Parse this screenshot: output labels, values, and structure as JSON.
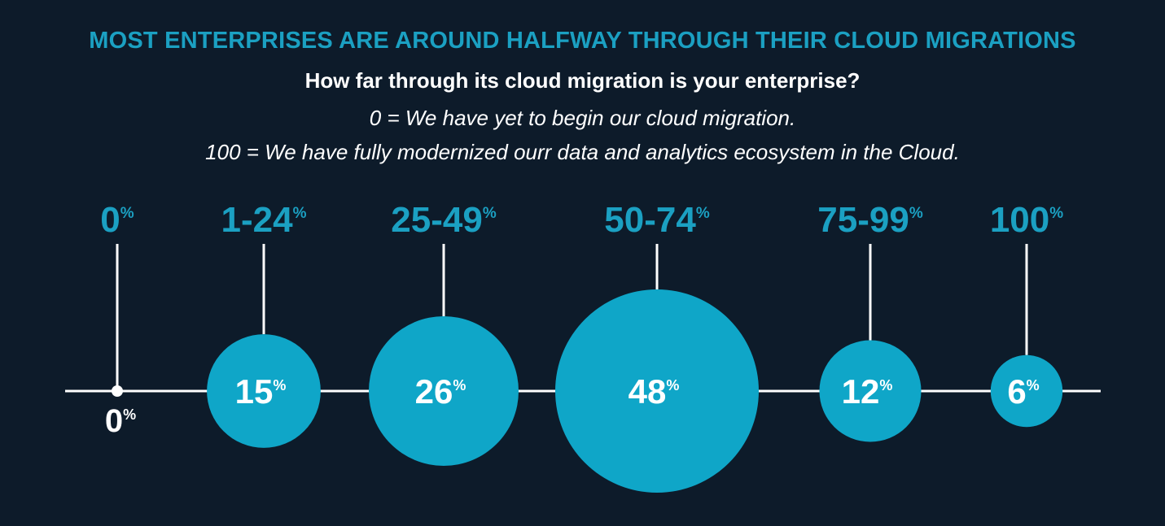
{
  "header": {
    "title": "MOST ENTERPRISES ARE AROUND HALFWAY THROUGH THEIR CLOUD MIGRATIONS",
    "subtitle": "How far through its cloud migration is your enterprise?",
    "note_zero": "0 = We have yet to begin our cloud migration.",
    "note_hundred": "100 = We have fully modernized ourr data and analytics ecosystem in the Cloud."
  },
  "colors": {
    "background": "#0d1b2a",
    "accent": "#1ba0c2",
    "bubble": "#0fa6c8",
    "line": "#ffffff",
    "text": "#ffffff"
  },
  "chart_data": {
    "type": "bubble",
    "title": "MOST ENTERPRISES ARE AROUND HALFWAY THROUGH THEIR CLOUD MIGRATIONS",
    "subtitle": "How far through its cloud migration is your enterprise?",
    "unit": "%",
    "categories": [
      "0",
      "1-24",
      "25-49",
      "50-74",
      "75-99",
      "100"
    ],
    "values": [
      0,
      15,
      26,
      48,
      12,
      6
    ],
    "value_labels": [
      "0",
      "15",
      "26",
      "48",
      "12",
      "6"
    ]
  }
}
